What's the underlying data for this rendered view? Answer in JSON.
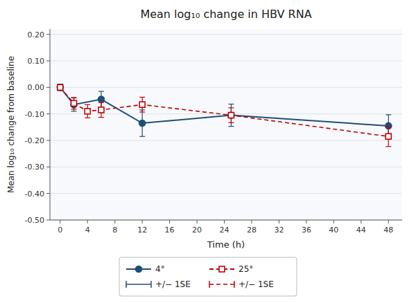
{
  "chart_data": {
    "type": "line",
    "title": "Mean log₁₀ change in HBV RNA",
    "x_label": "Time (h)",
    "y_label": "Mean log₁₀ change from baseline",
    "xlim": [
      -1.5,
      50
    ],
    "ylim": [
      -0.5,
      0.22
    ],
    "xticks": [
      0,
      4,
      8,
      12,
      16,
      20,
      24,
      28,
      32,
      36,
      40,
      44,
      48
    ],
    "yticks": [
      {
        "value": -0.5,
        "label": "-0.50"
      },
      {
        "value": -0.4,
        "label": "-0.40"
      },
      {
        "value": -0.3,
        "label": "-0.30"
      },
      {
        "value": -0.2,
        "label": "-0.20"
      },
      {
        "value": -0.1,
        "label": "-0.10"
      },
      {
        "value": 0.0,
        "label": "0.00"
      },
      {
        "value": 0.1,
        "label": "0.10"
      },
      {
        "value": 0.2,
        "label": "0.20"
      }
    ],
    "grid": true,
    "legend": "bottom",
    "series": [
      {
        "name": "4°",
        "color": "#1F4E79",
        "marker": "circle",
        "line_style": "solid",
        "x": [
          0,
          2,
          6,
          12,
          25,
          48
        ],
        "values": [
          0.0,
          -0.065,
          -0.045,
          -0.135,
          -0.105,
          -0.145
        ],
        "errors": [
          0.012,
          0.025,
          0.03,
          0.05,
          0.042,
          0.042
        ],
        "error_label": "+/− 1SE"
      },
      {
        "name": "25°",
        "color": "#C00000",
        "marker": "square",
        "line_style": "dashed",
        "x": [
          0,
          2,
          4,
          6,
          12,
          25,
          48
        ],
        "values": [
          0.0,
          -0.06,
          -0.09,
          -0.085,
          -0.065,
          -0.105,
          -0.185
        ],
        "errors": [
          0.01,
          0.022,
          0.025,
          0.028,
          0.028,
          0.028,
          0.038
        ],
        "error_label": "+/− 1SE"
      }
    ]
  }
}
